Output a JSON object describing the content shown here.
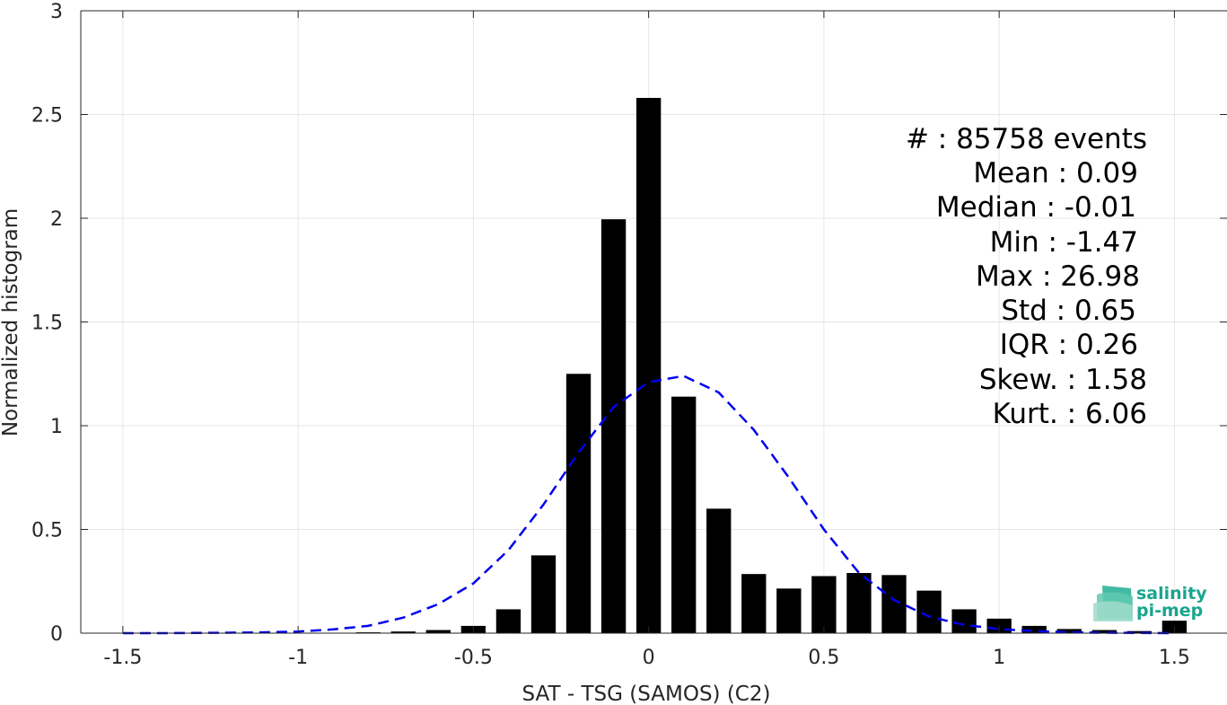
{
  "chart_data": {
    "type": "bar",
    "xlabel": "SAT - TSG (SAMOS) (C2)",
    "ylabel": "Normalized histogram",
    "xlim": [
      -1.62,
      1.65
    ],
    "ylim": [
      0,
      3
    ],
    "grid": true,
    "x_ticks": [
      -1.5,
      -1,
      -0.5,
      0,
      0.5,
      1,
      1.5
    ],
    "x_tick_labels": [
      "-1.5",
      "-1",
      "-0.5",
      "0",
      "0.5",
      "1",
      "1.5"
    ],
    "y_ticks": [
      0,
      0.5,
      1,
      1.5,
      2,
      2.5,
      3
    ],
    "y_tick_labels": [
      "0",
      "0.5",
      "1",
      "1.5",
      "2",
      "2.5",
      "3"
    ],
    "bar_width": 0.07,
    "series": [
      {
        "kind": "bars",
        "color": "#000000",
        "x": [
          -1.5,
          -1.4,
          -1.3,
          -1.2,
          -1.1,
          -1.0,
          -0.9,
          -0.8,
          -0.7,
          -0.6,
          -0.5,
          -0.4,
          -0.3,
          -0.2,
          -0.1,
          0.0,
          0.1,
          0.2,
          0.3,
          0.4,
          0.5,
          0.6,
          0.7,
          0.8,
          0.9,
          1.0,
          1.1,
          1.2,
          1.3,
          1.4,
          1.5
        ],
        "values": [
          0.0,
          0.0,
          0.0,
          0.0,
          0.0,
          0.001,
          0.002,
          0.004,
          0.008,
          0.015,
          0.035,
          0.115,
          0.375,
          1.25,
          1.995,
          2.58,
          1.14,
          0.6,
          0.285,
          0.215,
          0.275,
          0.29,
          0.28,
          0.205,
          0.115,
          0.07,
          0.035,
          0.02,
          0.015,
          0.01,
          0.06
        ]
      },
      {
        "kind": "line",
        "style": "dashed",
        "color": "#0000ee",
        "x": [
          -1.5,
          -1.4,
          -1.3,
          -1.2,
          -1.1,
          -1.0,
          -0.9,
          -0.8,
          -0.7,
          -0.6,
          -0.5,
          -0.4,
          -0.3,
          -0.2,
          -0.1,
          0.0,
          0.1,
          0.2,
          0.3,
          0.4,
          0.5,
          0.6,
          0.7,
          0.8,
          0.9,
          1.0,
          1.1,
          1.2,
          1.3,
          1.4,
          1.5
        ],
        "values": [
          0.0,
          0.0,
          0.001,
          0.002,
          0.004,
          0.008,
          0.018,
          0.035,
          0.075,
          0.14,
          0.24,
          0.4,
          0.62,
          0.87,
          1.09,
          1.21,
          1.24,
          1.16,
          0.98,
          0.75,
          0.5,
          0.29,
          0.16,
          0.08,
          0.04,
          0.02,
          0.01,
          0.004,
          0.002,
          0.001,
          0.0
        ]
      }
    ],
    "annotations": [
      "#  : 85758 events",
      "Mean : 0.09",
      "Median : -0.01",
      "Min : -1.47",
      "Max : 26.98",
      "Std : 0.65",
      "IQR : 0.26",
      "Skew. : 1.58",
      "Kurt. : 6.06"
    ]
  },
  "logo": {
    "line1": "salinity",
    "line2": "pi-mep",
    "color": "#1aa58f"
  }
}
